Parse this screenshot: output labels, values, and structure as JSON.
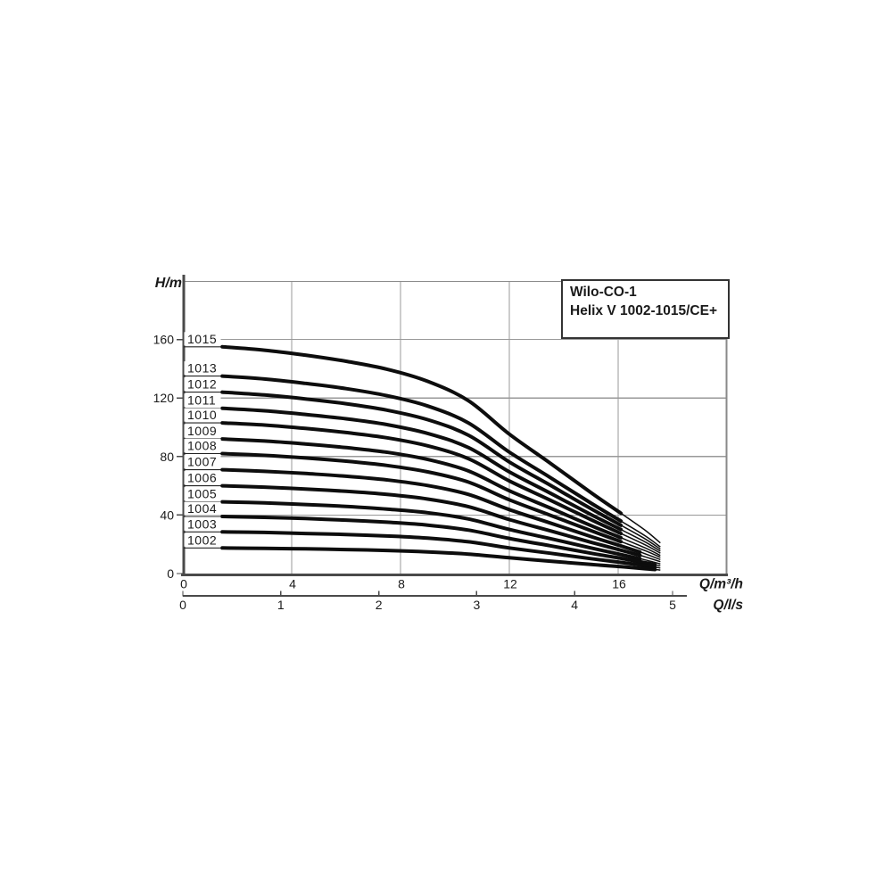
{
  "title_box": {
    "line1": "Wilo-CO-1",
    "line2": "Helix V 1002-1015/CE+"
  },
  "chart_data": {
    "type": "line",
    "title": "Wilo-CO-1 Helix V 1002-1015/CE+",
    "y_axis": {
      "label": "H/m",
      "ticks": [
        0,
        40,
        80,
        120,
        160
      ],
      "range": [
        0,
        200
      ],
      "grid": true
    },
    "x_axis": {
      "label": "Q/m³/h",
      "ticks": [
        0,
        4,
        8,
        12,
        16
      ],
      "range": [
        0,
        20
      ],
      "grid": true
    },
    "x_axis_secondary": {
      "label": "Q/l/s",
      "ticks": [
        0,
        1,
        2,
        3,
        4,
        5
      ],
      "m3h_per_unit": 3.6
    },
    "legend_position": "none",
    "curve_start_q": 1.45,
    "curve_end_q": 17.55,
    "q_samples": [
      1.45,
      3,
      4.5,
      6,
      7.5,
      9,
      10.5,
      12,
      13.5,
      15,
      16.1,
      17,
      17.55
    ],
    "series": [
      {
        "name": "1015",
        "thick_until_q": 16.1,
        "h_values": [
          155,
          152.7,
          149.3,
          145.1,
          139.7,
          131.4,
          118.1,
          95.3,
          75.5,
          55.3,
          41.2,
          29.5,
          20.9
        ]
      },
      {
        "name": "1013",
        "thick_until_q": 16.1,
        "h_values": [
          135,
          133,
          130,
          126.4,
          121.6,
          114.5,
          102.9,
          83,
          65.7,
          48.2,
          35.9,
          25.7,
          18.2
        ]
      },
      {
        "name": "1012",
        "thick_until_q": 16.1,
        "h_values": [
          124,
          122.1,
          119.4,
          116.1,
          111.7,
          105.2,
          94.5,
          76.3,
          60.4,
          44.3,
          33,
          23.6,
          16.7
        ]
      },
      {
        "name": "1011",
        "thick_until_q": 16.1,
        "h_values": [
          113,
          111.3,
          108.8,
          105.8,
          101.8,
          95.8,
          86.1,
          69.5,
          55,
          40.3,
          30.1,
          21.5,
          15.3
        ]
      },
      {
        "name": "1010",
        "thick_until_q": 16.1,
        "h_values": [
          103,
          101.5,
          99.2,
          96.4,
          92.8,
          87.3,
          78.5,
          63.3,
          50.2,
          36.8,
          27.4,
          19.6,
          13.9
        ]
      },
      {
        "name": "1009",
        "thick_until_q": 16.1,
        "h_values": [
          92,
          90.6,
          88.6,
          86.1,
          82.9,
          78,
          70.1,
          56.6,
          44.8,
          32.8,
          24.5,
          17.5,
          12.4
        ]
      },
      {
        "name": "1008",
        "thick_until_q": 16.1,
        "h_values": [
          82,
          80.8,
          79,
          76.8,
          73.9,
          69.5,
          62.5,
          50.4,
          39.9,
          29.3,
          21.8,
          15.6,
          11.1
        ]
      },
      {
        "name": "1007",
        "thick_until_q": 16.8,
        "h_values": [
          71,
          69.9,
          68.4,
          66.5,
          64,
          60.2,
          54.1,
          43.7,
          34.6,
          25.3,
          18.9,
          13.5,
          9.6
        ]
      },
      {
        "name": "1006",
        "thick_until_q": 16.8,
        "h_values": [
          60,
          59.1,
          57.8,
          56.2,
          54.1,
          50.9,
          45.7,
          36.9,
          29.2,
          21.4,
          16,
          11.4,
          8.1
        ]
      },
      {
        "name": "1005",
        "thick_until_q": 16.8,
        "h_values": [
          49,
          48.3,
          47.2,
          45.9,
          44.1,
          41.6,
          37.3,
          30.1,
          23.9,
          17.5,
          13,
          9.3,
          6.6
        ]
      },
      {
        "name": "1004",
        "thick_until_q": 17.35,
        "h_values": [
          39,
          38.4,
          37.6,
          36.5,
          35.1,
          33.1,
          29.7,
          24,
          19,
          13.9,
          10.4,
          7.4,
          5.3
        ]
      },
      {
        "name": "1003",
        "thick_until_q": 17.35,
        "h_values": [
          28.5,
          28.1,
          27.4,
          26.7,
          25.7,
          24.2,
          21.7,
          17.5,
          13.9,
          10.2,
          7.6,
          5.4,
          3.8
        ]
      },
      {
        "name": "1002",
        "thick_until_q": 17.35,
        "h_values": [
          17.5,
          17.2,
          16.9,
          16.4,
          15.8,
          14.8,
          13.3,
          10.8,
          8.5,
          6.2,
          4.7,
          3.3,
          2.4
        ]
      }
    ],
    "colors": {
      "curve": "#0d0d0d",
      "grid": "#999999",
      "frame": "#8a8a8a",
      "axis": "#4a4a4a",
      "text": "#1a1a1a",
      "background": "#ffffff"
    }
  }
}
